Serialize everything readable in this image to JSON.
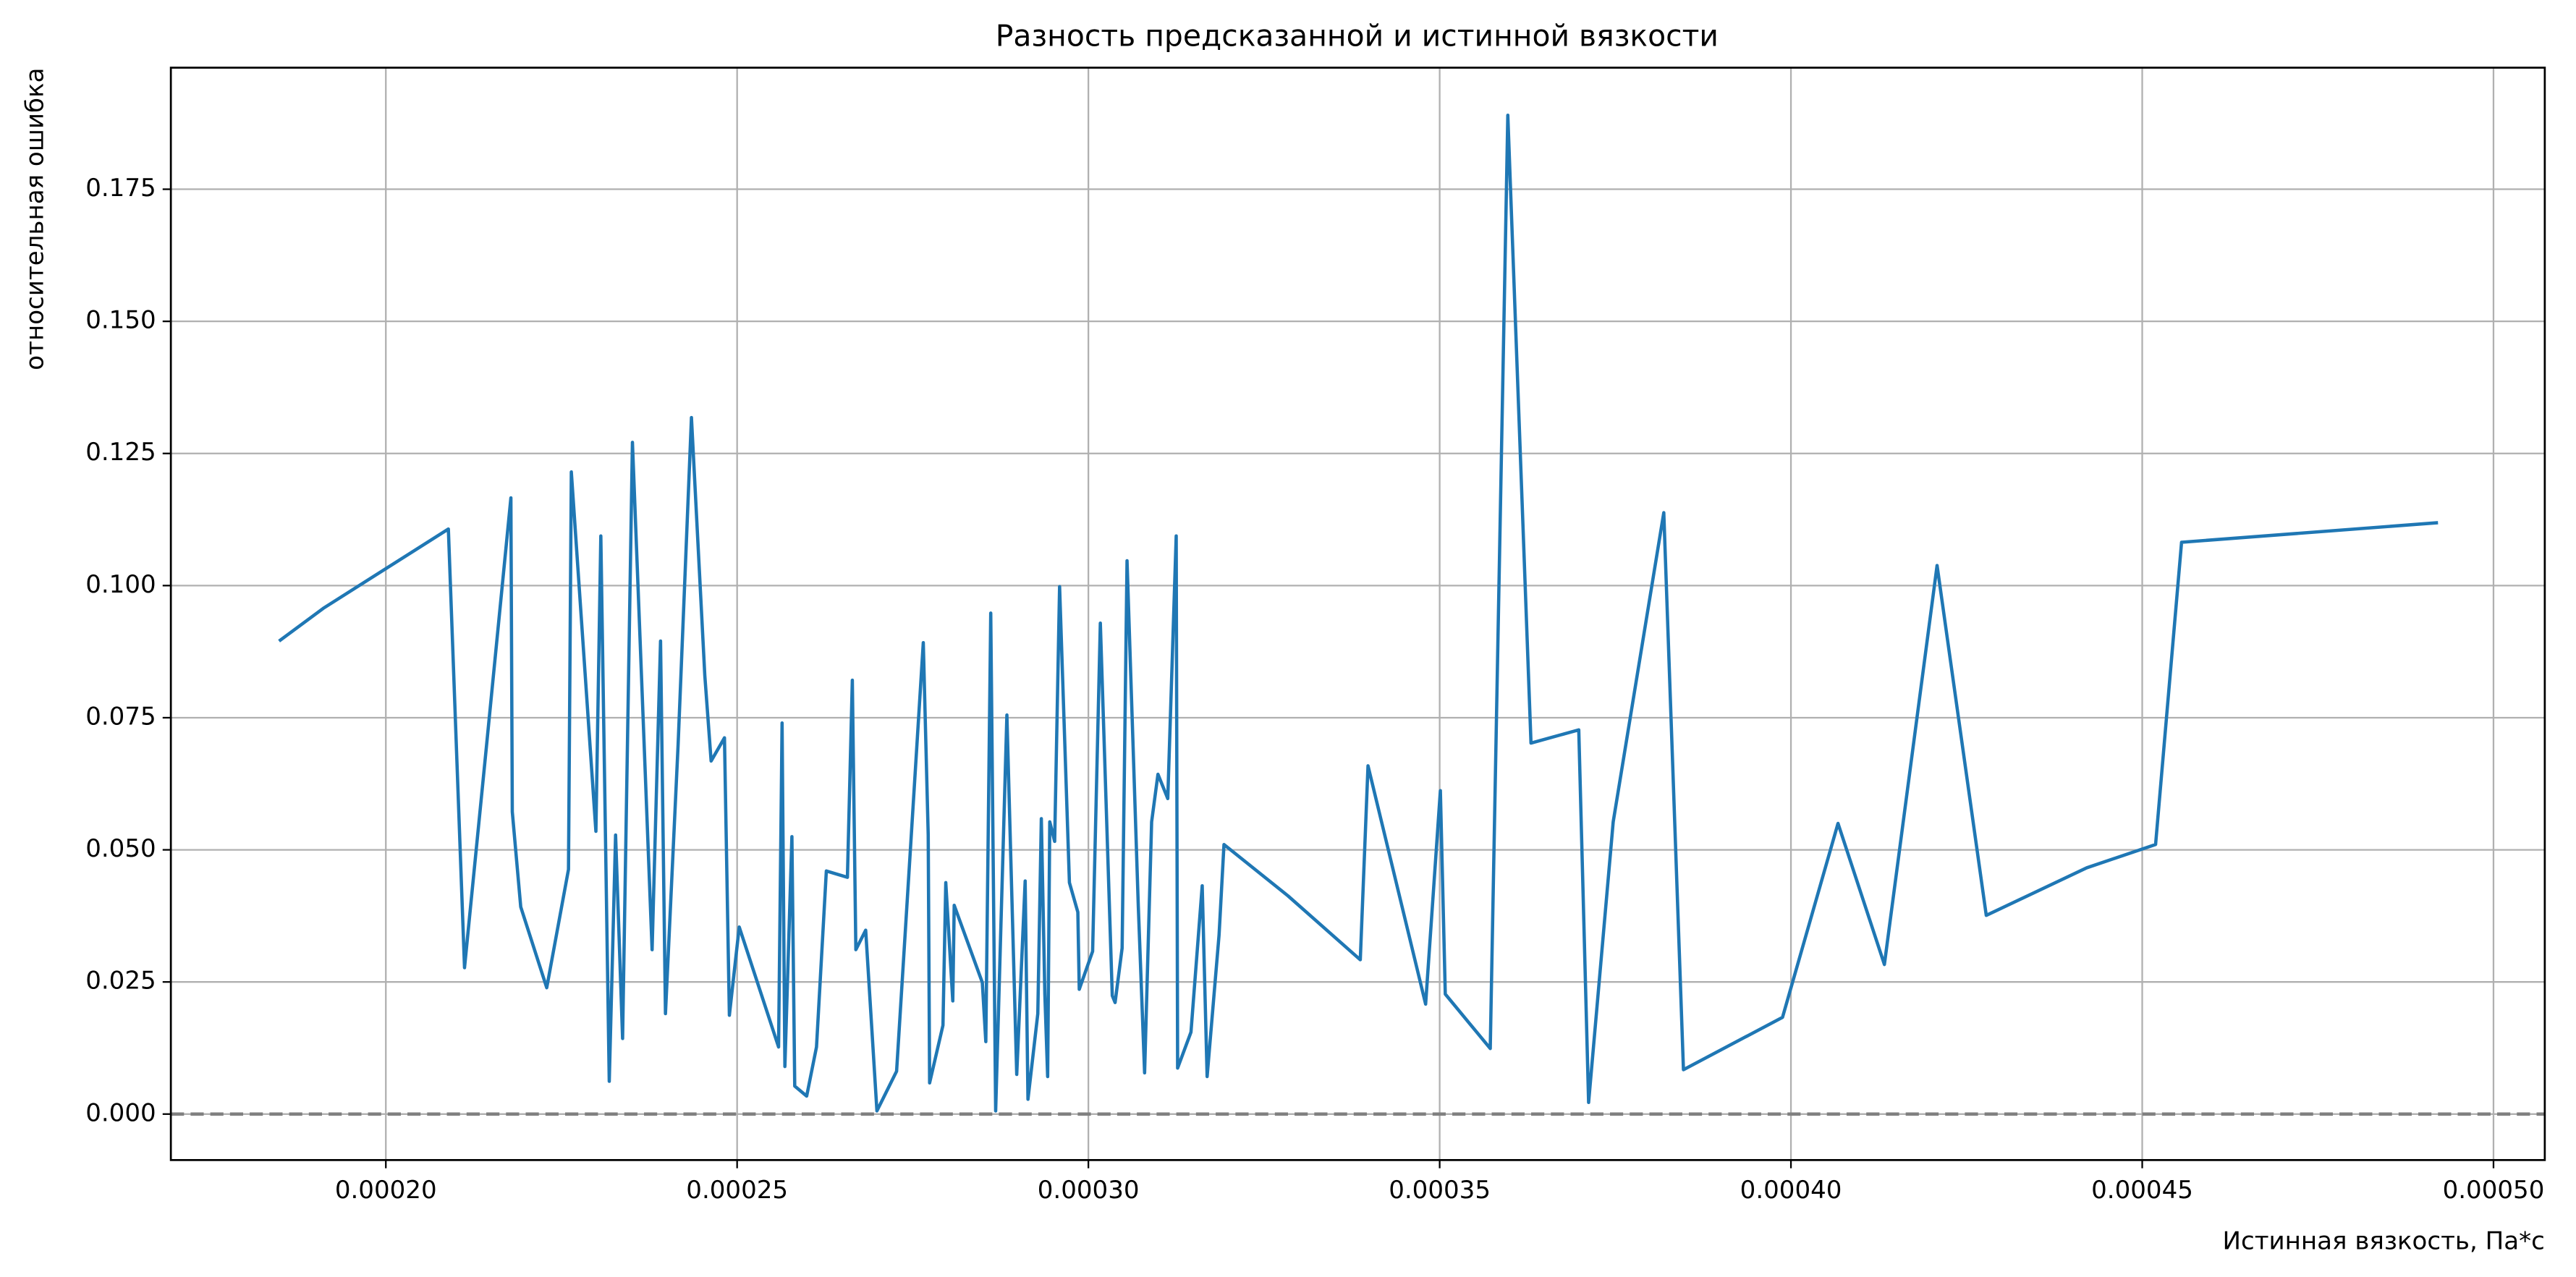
{
  "chart_data": {
    "type": "line",
    "title": "Разность предсказанной и истинной вязкости",
    "xlabel": "Истинная вязкость, Па*с",
    "ylabel": "относительная ошибка",
    "color": "#1f77b4",
    "grid": true,
    "reference_line": {
      "y": 0,
      "color": "#808080",
      "dashed": true
    },
    "xlim": [
      0.0001694,
      0.0005073
    ],
    "ylim": [
      -0.0087,
      0.198
    ],
    "xticks": [
      {
        "value": 0.0002,
        "label": "0.00020"
      },
      {
        "value": 0.00025,
        "label": "0.00025"
      },
      {
        "value": 0.0003,
        "label": "0.00030"
      },
      {
        "value": 0.00035,
        "label": "0.00035"
      },
      {
        "value": 0.0004,
        "label": "0.00040"
      },
      {
        "value": 0.00045,
        "label": "0.00045"
      },
      {
        "value": 0.0005,
        "label": "0.00050"
      }
    ],
    "yticks": [
      {
        "value": 0,
        "label": "0.000"
      },
      {
        "value": 0.025,
        "label": "0.025"
      },
      {
        "value": 0.05,
        "label": "0.050"
      },
      {
        "value": 0.075,
        "label": "0.075"
      },
      {
        "value": 0.1,
        "label": "0.100"
      },
      {
        "value": 0.125,
        "label": "0.125"
      },
      {
        "value": 0.15,
        "label": "0.150"
      },
      {
        "value": 0.175,
        "label": "0.175"
      }
    ],
    "x": [
      0.0001848,
      0.0001911,
      0.0002089,
      0.0002112,
      0.0002143,
      0.0002178,
      0.000218,
      0.0002192,
      0.0002229,
      0.000226,
      0.0002264,
      0.0002299,
      0.0002306,
      0.0002318,
      0.0002327,
      0.0002337,
      0.0002351,
      0.0002379,
      0.0002391,
      0.0002398,
      0.0002416,
      0.0002435,
      0.0002454,
      0.0002463,
      0.0002482,
      0.0002489,
      0.0002503,
      0.0002559,
      0.0002564,
      0.0002568,
      0.0002578,
      0.0002582,
      0.0002599,
      0.0002613,
      0.0002627,
      0.0002657,
      0.0002664,
      0.0002669,
      0.0002683,
      0.0002699,
      0.0002727,
      0.0002765,
      0.0002772,
      0.0002774,
      0.0002793,
      0.0002797,
      0.0002807,
      0.0002809,
      0.0002849,
      0.0002854,
      0.0002861,
      0.0002868,
      0.0002884,
      0.0002898,
      0.000291,
      0.0002914,
      0.0002928,
      0.0002933,
      0.0002938,
      0.0002942,
      0.0002945,
      0.0002952,
      0.0002959,
      0.0002973,
      0.0002985,
      0.0002987,
      0.0003006,
      0.0003017,
      0.0003034,
      0.0003038,
      0.0003048,
      0.0003055,
      0.0003071,
      0.000308,
      0.000309,
      0.0003099,
      0.0003113,
      0.0003125,
      0.0003127,
      0.0003146,
      0.0003162,
      0.0003169,
      0.0003186,
      0.0003193,
      0.0003284,
      0.0003387,
      0.0003398,
      0.000348,
      0.0003501,
      0.0003508,
      0.0003572,
      0.0003597,
      0.000363,
      0.0003698,
      0.0003712,
      0.0003747,
      0.0003819,
      0.0003847,
      0.0003988,
      0.0004067,
      0.0004133,
      0.0004208,
      0.0004278,
      0.0004421,
      0.0004519,
      0.0004556,
      0.0004921
    ],
    "values": [
      0.0895,
      0.0957,
      0.1107,
      0.0277,
      0.0693,
      0.1166,
      0.0572,
      0.0392,
      0.0239,
      0.0463,
      0.1215,
      0.0535,
      0.1094,
      0.0062,
      0.0528,
      0.0143,
      0.1271,
      0.0311,
      0.0895,
      0.019,
      0.0699,
      0.1318,
      0.083,
      0.0668,
      0.0712,
      0.0187,
      0.0354,
      0.0127,
      0.074,
      0.009,
      0.0525,
      0.0053,
      0.0034,
      0.0127,
      0.046,
      0.0448,
      0.0821,
      0.0311,
      0.0348,
      0.0006,
      0.0081,
      0.0892,
      0.0528,
      0.0059,
      0.0168,
      0.0438,
      0.0214,
      0.0395,
      0.0249,
      0.0137,
      0.0948,
      0.0006,
      0.0755,
      0.0075,
      0.0441,
      0.0028,
      0.019,
      0.0559,
      0.0227,
      0.0071,
      0.0553,
      0.0516,
      0.0998,
      0.0438,
      0.0382,
      0.0236,
      0.0308,
      0.0929,
      0.0224,
      0.0211,
      0.0314,
      0.1047,
      0.0395,
      0.0078,
      0.0553,
      0.0643,
      0.0597,
      0.1094,
      0.0087,
      0.0155,
      0.0432,
      0.0071,
      0.0339,
      0.051,
      0.0413,
      0.0292,
      0.0659,
      0.0208,
      0.0612,
      0.0227,
      0.0124,
      0.189,
      0.0702,
      0.0727,
      0.0022,
      0.0553,
      0.1138,
      0.0084,
      0.0183,
      0.055,
      0.0283,
      0.1038,
      0.0376,
      0.0466,
      0.051,
      0.1082,
      0.1119
    ]
  }
}
